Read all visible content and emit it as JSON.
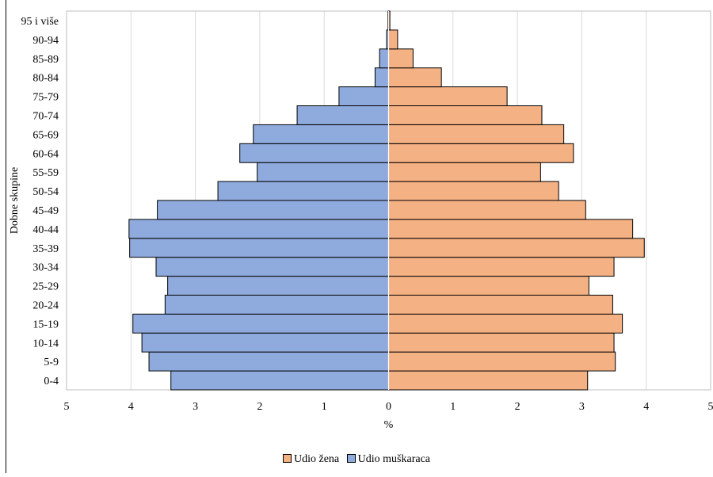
{
  "chart_data": {
    "type": "bar",
    "orientation": "horizontal",
    "title": "",
    "xlabel": "%",
    "ylabel": "Dobne skupine",
    "xlim": [
      -5,
      5
    ],
    "x_ticks": [
      5,
      4,
      3,
      2,
      1,
      0,
      1,
      2,
      3,
      4,
      5
    ],
    "grid": "vertical",
    "legend_position": "bottom",
    "categories": [
      "0-4",
      "5-9",
      "10-14",
      "15-19",
      "20-24",
      "25-29",
      "30-34",
      "35-39",
      "40-44",
      "45-49",
      "50-54",
      "55-59",
      "60-64",
      "65-69",
      "70-74",
      "75-79",
      "80-84",
      "85-89",
      "90-94",
      "95 i više"
    ],
    "series": [
      {
        "name": "Udio žena",
        "color": "#F4B183",
        "side": "right",
        "values": [
          3.09,
          3.52,
          3.5,
          3.63,
          3.48,
          3.11,
          3.5,
          3.97,
          3.79,
          3.06,
          2.64,
          2.36,
          2.87,
          2.72,
          2.38,
          1.84,
          0.82,
          0.38,
          0.14,
          0.02
        ]
      },
      {
        "name": "Udio muškaraca",
        "color": "#8FAADC",
        "side": "left",
        "values": [
          3.38,
          3.72,
          3.83,
          3.97,
          3.47,
          3.43,
          3.61,
          4.02,
          4.03,
          3.59,
          2.65,
          2.04,
          2.31,
          2.1,
          1.42,
          0.77,
          0.21,
          0.14,
          0.03,
          0.01
        ]
      }
    ]
  }
}
